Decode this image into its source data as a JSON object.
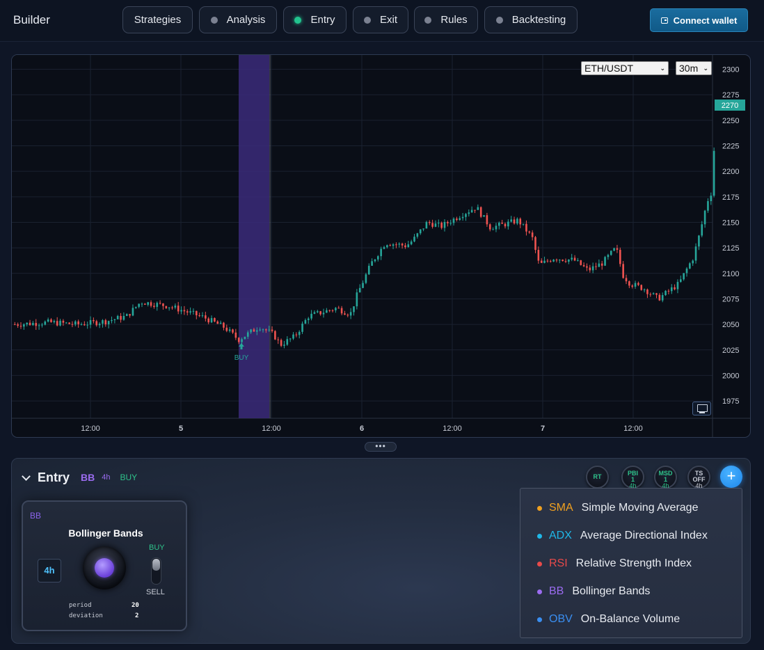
{
  "header": {
    "brand": "Builder",
    "tabs": [
      {
        "label": "Strategies",
        "dot": false,
        "active": false
      },
      {
        "label": "Analysis",
        "dot": true,
        "active": false
      },
      {
        "label": "Entry",
        "dot": true,
        "active": true
      },
      {
        "label": "Exit",
        "dot": true,
        "active": false
      },
      {
        "label": "Rules",
        "dot": true,
        "active": false
      },
      {
        "label": "Backtesting",
        "dot": true,
        "active": false
      }
    ],
    "connect_label": "Connect wallet"
  },
  "chart": {
    "symbol": "ETH/USDT",
    "interval": "30m",
    "current_price_label": "2270",
    "marker_label": "BUY",
    "colors": {
      "up": "#26a69a",
      "down": "#ef5350",
      "highlight": "#3b2a7a"
    }
  },
  "chart_data": {
    "type": "candlestick",
    "y_ticks": [
      2300,
      2275,
      2250,
      2225,
      2200,
      2175,
      2150,
      2125,
      2100,
      2075,
      2050,
      2025,
      2000,
      1975
    ],
    "x_ticks": [
      "12:00",
      "5",
      "12:00",
      "6",
      "12:00",
      "7",
      "12:00"
    ],
    "ylim": [
      1958,
      2314
    ],
    "current_price": 2270,
    "close_path": [
      [
        0,
        2050
      ],
      [
        0.05,
        2052
      ],
      [
        0.09,
        2050
      ],
      [
        0.13,
        2053
      ],
      [
        0.16,
        2058
      ],
      [
        0.18,
        2072
      ],
      [
        0.22,
        2068
      ],
      [
        0.27,
        2057
      ],
      [
        0.3,
        2047
      ],
      [
        0.32,
        2035
      ],
      [
        0.35,
        2048
      ],
      [
        0.37,
        2040
      ],
      [
        0.38,
        2030
      ],
      [
        0.4,
        2038
      ],
      [
        0.42,
        2058
      ],
      [
        0.46,
        2066
      ],
      [
        0.48,
        2060
      ],
      [
        0.49,
        2080
      ],
      [
        0.51,
        2110
      ],
      [
        0.53,
        2130
      ],
      [
        0.56,
        2127
      ],
      [
        0.57,
        2133
      ],
      [
        0.59,
        2150
      ],
      [
        0.61,
        2146
      ],
      [
        0.64,
        2158
      ],
      [
        0.66,
        2165
      ],
      [
        0.68,
        2145
      ],
      [
        0.7,
        2148
      ],
      [
        0.72,
        2152
      ],
      [
        0.74,
        2135
      ],
      [
        0.75,
        2108
      ],
      [
        0.77,
        2115
      ],
      [
        0.8,
        2113
      ],
      [
        0.82,
        2103
      ],
      [
        0.84,
        2110
      ],
      [
        0.86,
        2125
      ],
      [
        0.87,
        2098
      ],
      [
        0.88,
        2090
      ],
      [
        0.9,
        2085
      ],
      [
        0.92,
        2075
      ],
      [
        0.95,
        2090
      ],
      [
        0.96,
        2103
      ],
      [
        0.97,
        2115
      ],
      [
        0.98,
        2140
      ],
      [
        0.99,
        2170
      ],
      [
        1.0,
        2185
      ]
    ],
    "buy_signal": {
      "x_label": "between 5 and 12:00",
      "price": 2040
    }
  },
  "entry": {
    "title": "Entry",
    "indicator": "BB",
    "timeframe": "4h",
    "signal": "BUY",
    "mini_buttons": [
      {
        "l1": "RT",
        "l2": "",
        "l3": "",
        "color": "#2ec28a"
      },
      {
        "l1": "PBI",
        "l2": "1",
        "l3": "4h",
        "color": "#2ec28a"
      },
      {
        "l1": "MSD",
        "l2": "1",
        "l3": "4h",
        "color": "#2ec28a"
      },
      {
        "l1": "TS",
        "l2": "OFF",
        "l3": "4h",
        "color": "#c8ccd6"
      }
    ],
    "add_label": "+"
  },
  "indicator_card": {
    "code": "BB",
    "name": "Bollinger Bands",
    "timeframe": "4h",
    "buy_label": "BUY",
    "sell_label": "SELL",
    "params": [
      {
        "name": "period",
        "value": "20"
      },
      {
        "name": "deviation",
        "value": "2"
      }
    ]
  },
  "indicator_menu": [
    {
      "abbr": "SMA",
      "name": "Simple Moving Average",
      "color": "#f0a020"
    },
    {
      "abbr": "ADX",
      "name": "Average Directional Index",
      "color": "#1fb8e8"
    },
    {
      "abbr": "RSI",
      "name": "Relative Strength Index",
      "color": "#e84a4a"
    },
    {
      "abbr": "BB",
      "name": "Bollinger Bands",
      "color": "#9b6cf0"
    },
    {
      "abbr": "OBV",
      "name": "On-Balance Volume",
      "color": "#3a8ef0"
    }
  ]
}
